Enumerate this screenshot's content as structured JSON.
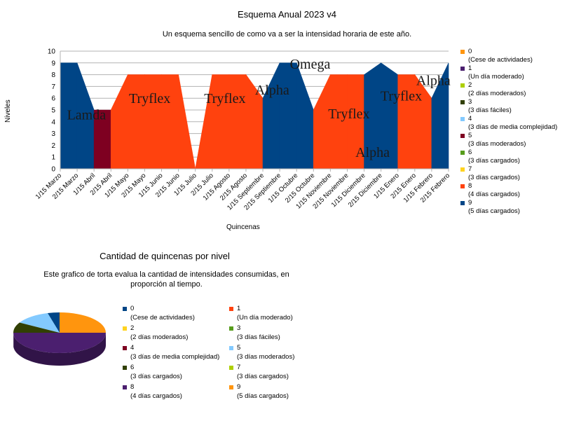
{
  "chart_data": [
    {
      "type": "area",
      "title": "Esquema Anual 2023 v4",
      "subtitle": "Un esquema sencillo de como va a ser la intensidad horaria de este año.",
      "xlabel": "Quincenas",
      "ylabel": "Niveles",
      "ylim": [
        0,
        10
      ],
      "yticks": [
        0,
        1,
        2,
        3,
        4,
        5,
        6,
        7,
        8,
        9,
        10
      ],
      "grid": true,
      "legend_position": "right",
      "categories": [
        "1/15 Marzo",
        "2/15 Marzo",
        "1/15 Abril",
        "2/15 Abril",
        "1/15 Mayo",
        "2/15 Mayo",
        "1/15 Junio",
        "2/15 Junio",
        "1/15 Julio",
        "2/15 Julio",
        "1/15 Agosto",
        "2/15 Agosto",
        "1/15 Septiembre",
        "2/15 Septiembre",
        "1/15 Octubre",
        "2/15 Octubre",
        "1/15 Noviembre",
        "2/15 Noviembre",
        "1/15 Diciembre",
        "2/15 Diciembre",
        "1/15 Enero",
        "2/15 Enero",
        "1/15 Febrero",
        "2/15 Febrero"
      ],
      "values": [
        9,
        9,
        5,
        5,
        8,
        8,
        8,
        8,
        0,
        8,
        8,
        8,
        6,
        9,
        9,
        5,
        8,
        8,
        8,
        9,
        8,
        8,
        6,
        9
      ],
      "legend": [
        {
          "key": "0",
          "desc": "(Cese de actividades)",
          "color": "#ff950e"
        },
        {
          "key": "1",
          "desc": "(Un día moderado)",
          "color": "#4b1f6f"
        },
        {
          "key": "2",
          "desc": "(2 días moderados)",
          "color": "#aecf00"
        },
        {
          "key": "3",
          "desc": "(3 días fáciles)",
          "color": "#314004"
        },
        {
          "key": "4",
          "desc": "(3 días de media complejidad)",
          "color": "#83caff"
        },
        {
          "key": "5",
          "desc": "(3 días moderados)",
          "color": "#7e0021"
        },
        {
          "key": "6",
          "desc": "(3 días cargados)",
          "color": "#579d1c"
        },
        {
          "key": "7",
          "desc": "(3 días cargados)",
          "color": "#ffd320"
        },
        {
          "key": "8",
          "desc": "(4 días cargados)",
          "color": "#ff420e"
        },
        {
          "key": "9",
          "desc": "(5 días cargados)",
          "color": "#004586"
        }
      ],
      "annotations": [
        "Lamda",
        "Tryflex",
        "Tryflex",
        "Alpha",
        "Omega",
        "Tryflex",
        "Alpha",
        "Tryflex",
        "Alpha"
      ]
    },
    {
      "type": "pie",
      "title": "Cantidad de quincenas por nivel",
      "subtitle": "Este grafico de torta evalua la cantidad de intensidades consumidas, en proporción al tiempo.",
      "legend_position": "right",
      "slices": [
        {
          "key": "0",
          "desc": "(Cese de actividades)",
          "value": 1,
          "color": "#004586"
        },
        {
          "key": "1",
          "desc": "(Un día moderado)",
          "value": 0,
          "color": "#ff420e"
        },
        {
          "key": "2",
          "desc": "(2 días moderados)",
          "value": 0,
          "color": "#ffd320"
        },
        {
          "key": "3",
          "desc": "(3 días fáciles)",
          "value": 0,
          "color": "#579d1c"
        },
        {
          "key": "4",
          "desc": "(3 días de media complejidad)",
          "value": 0,
          "color": "#7e0021"
        },
        {
          "key": "5",
          "desc": "(3 días moderados)",
          "value": 3,
          "color": "#83caff"
        },
        {
          "key": "6",
          "desc": "(3 días cargados)",
          "value": 2,
          "color": "#314004"
        },
        {
          "key": "7",
          "desc": "(3 días cargados)",
          "value": 0,
          "color": "#aecf00"
        },
        {
          "key": "8",
          "desc": "(4 días cargados)",
          "value": 12,
          "color": "#4b1f6f"
        },
        {
          "key": "9",
          "desc": "(5 días cargados)",
          "value": 6,
          "color": "#ff950e"
        }
      ]
    }
  ]
}
